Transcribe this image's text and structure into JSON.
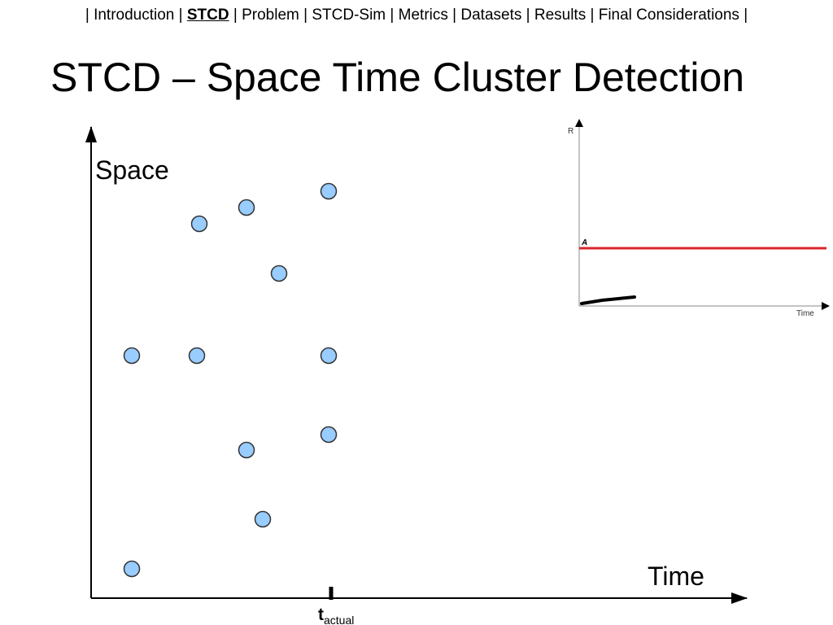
{
  "nav": {
    "separator": "|",
    "items": [
      "Introduction",
      "STCD",
      "Problem",
      "STCD-Sim",
      "Metrics",
      "Datasets",
      "Results",
      "Final Considerations"
    ],
    "current": 1
  },
  "title": "STCD – Space Time Cluster Detection",
  "diagram": {
    "y_axis_label": "Space",
    "x_axis_label": "Time",
    "marker_label": "t",
    "marker_subscript": "actual"
  },
  "inset": {
    "y_axis_label": "R",
    "x_axis_label": "Time",
    "threshold_label": "A"
  }
}
